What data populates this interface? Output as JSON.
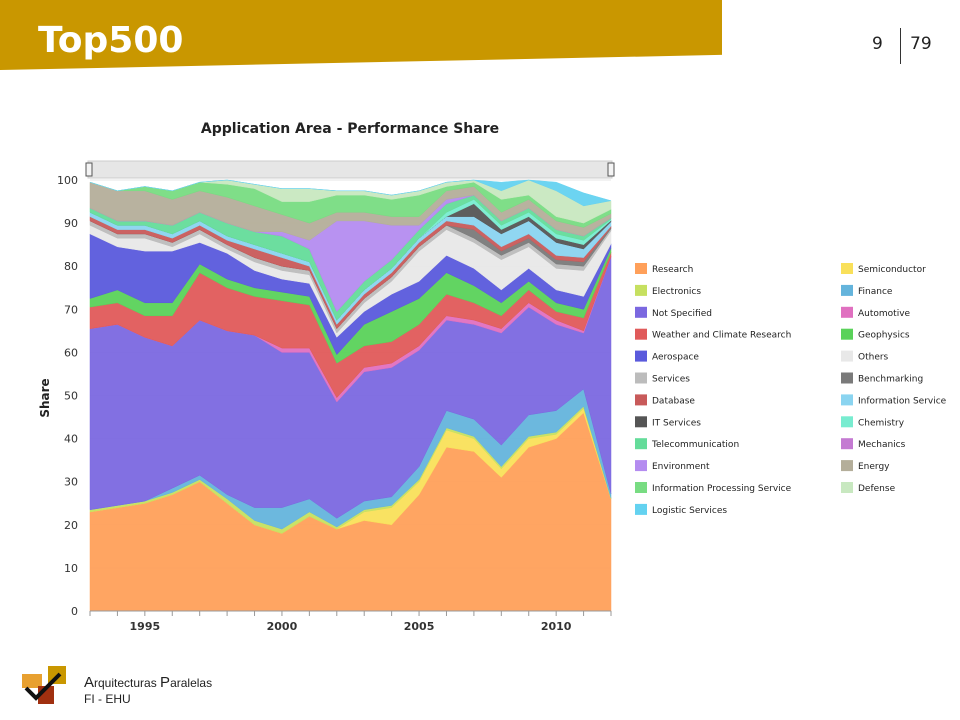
{
  "slide": {
    "title": "Top500",
    "page_current": "9",
    "page_total": "79"
  },
  "footer": {
    "line1_letter_a": "A",
    "line1_rest_a": "rquitecturas ",
    "line1_letter_p": "P",
    "line1_rest_p": "aralelas",
    "line2": "FI - EHU"
  },
  "chart_data": {
    "type": "area",
    "title": "Application Area - Performance Share",
    "xlabel": "",
    "ylabel": "Share",
    "ylim": [
      0,
      100
    ],
    "y_ticks": [
      "0",
      "10",
      "20",
      "30",
      "40",
      "50",
      "60",
      "70",
      "80",
      "90",
      "100"
    ],
    "x_ticks": [
      {
        "label": "1995",
        "value": 1995
      },
      {
        "label": "2000",
        "value": 2000
      },
      {
        "label": "2005",
        "value": 2005
      },
      {
        "label": "2010",
        "value": 2010
      }
    ],
    "x": [
      1993,
      1994,
      1995,
      1996,
      1997,
      1998,
      1999,
      2000,
      2001,
      2002,
      2003,
      2004,
      2005,
      2006,
      2007,
      2008,
      2009,
      2010,
      2011,
      2012
    ],
    "legend_position": "right",
    "series": [
      {
        "name": "Research",
        "color": "#ffa05a",
        "values": [
          23,
          24,
          25,
          27,
          30,
          25,
          20,
          18,
          22,
          19,
          21,
          20,
          27,
          38,
          37,
          31,
          38,
          40,
          46,
          26
        ]
      },
      {
        "name": "Semiconductor",
        "color": "#f9e05a",
        "values": [
          0,
          0,
          0,
          0,
          0,
          0,
          0,
          0,
          0,
          0,
          2,
          4,
          3,
          4,
          3,
          2,
          2,
          1,
          1,
          0
        ]
      },
      {
        "name": "Electronics",
        "color": "#c6e060",
        "values": [
          0.5,
          0.5,
          0.5,
          0.5,
          0.5,
          1,
          1,
          1,
          1,
          0.5,
          0.5,
          0.5,
          0.5,
          0.5,
          0.5,
          0.5,
          0.5,
          0.5,
          0.5,
          0.2
        ]
      },
      {
        "name": "Finance",
        "color": "#64b4dc",
        "values": [
          0,
          0,
          0,
          1,
          1,
          1,
          3,
          5,
          3,
          2,
          2,
          2,
          3,
          4,
          4,
          5,
          5,
          5,
          4,
          1
        ]
      },
      {
        "name": "Not Specified",
        "color": "#7b68e0",
        "values": [
          42,
          42,
          38,
          33,
          36,
          38,
          40,
          36,
          34,
          27,
          30,
          30,
          27,
          21,
          22,
          26,
          25,
          20,
          13,
          55
        ]
      },
      {
        "name": "Automotive",
        "color": "#e070c0",
        "values": [
          0,
          0,
          0,
          0,
          0,
          0,
          0,
          1,
          1,
          1,
          1,
          1,
          1,
          1,
          1,
          1,
          1,
          1,
          0.5,
          0
        ]
      },
      {
        "name": "Weather and Climate Research",
        "color": "#e05a5a",
        "values": [
          5,
          5,
          5,
          7,
          11,
          10,
          9,
          11,
          10,
          8,
          5,
          5,
          5,
          5,
          4,
          3,
          3,
          2,
          3,
          1
        ]
      },
      {
        "name": "Geophysics",
        "color": "#5ad25a",
        "values": [
          2,
          3,
          3,
          3,
          2,
          2,
          2,
          2,
          2,
          2,
          5,
          7,
          6,
          5,
          4,
          3,
          2,
          2,
          2,
          1
        ]
      },
      {
        "name": "Aerospace",
        "color": "#5a5adc",
        "values": [
          15,
          10,
          12,
          12,
          5,
          6,
          4,
          3,
          3,
          4,
          3,
          4,
          4,
          4,
          4,
          3,
          3,
          3,
          3,
          1
        ]
      },
      {
        "name": "Others",
        "color": "#e8e8e8",
        "values": [
          2,
          2,
          3,
          1,
          2,
          1,
          2,
          2,
          2,
          1,
          2,
          3,
          7,
          6,
          6,
          7,
          5,
          5,
          6,
          3
        ]
      },
      {
        "name": "Services",
        "color": "#bcbcbc",
        "values": [
          1,
          1,
          1,
          1,
          1,
          1,
          1,
          1,
          1,
          1,
          1,
          1,
          1,
          1,
          1,
          1,
          1,
          1,
          1,
          0.5
        ]
      },
      {
        "name": "Benchmarking",
        "color": "#7a7a7a",
        "values": [
          0,
          0,
          0,
          0,
          0,
          0,
          0,
          0,
          0,
          0,
          0,
          0,
          0,
          0,
          2,
          1,
          1,
          1,
          1,
          0.3
        ]
      },
      {
        "name": "Database",
        "color": "#c85a5a",
        "values": [
          1,
          1,
          1,
          1,
          1,
          1,
          2,
          2,
          1,
          1,
          1,
          1,
          1,
          1,
          1,
          1,
          1,
          1,
          1,
          0.3
        ]
      },
      {
        "name": "Information Service",
        "color": "#8ad4f0",
        "values": [
          1,
          1,
          1,
          1,
          1,
          1,
          1,
          1,
          1,
          1,
          1,
          1,
          1,
          1,
          2,
          3,
          3,
          3,
          2,
          1
        ]
      },
      {
        "name": "IT Services",
        "color": "#555555",
        "values": [
          0,
          0,
          0,
          0,
          0,
          0,
          0,
          0,
          0,
          0,
          0,
          0,
          0,
          0,
          3,
          1,
          1,
          1,
          1,
          0.3
        ]
      },
      {
        "name": "Chemistry",
        "color": "#78ecd0",
        "values": [
          0,
          0,
          0,
          0,
          0,
          0,
          0,
          0,
          0,
          0,
          0,
          0,
          0,
          1,
          1,
          1,
          1,
          1,
          1,
          0.3
        ]
      },
      {
        "name": "Telecommunication",
        "color": "#64dc9a",
        "values": [
          1,
          1,
          1,
          2,
          2,
          3,
          3,
          4,
          3,
          2,
          2,
          2,
          2,
          2,
          1,
          1,
          1,
          1,
          1,
          0.3
        ]
      },
      {
        "name": "Mechanics",
        "color": "#c47ad2",
        "values": [
          0,
          0,
          0,
          0,
          0,
          0,
          0,
          0,
          0,
          0,
          0,
          0,
          0,
          0,
          0,
          0,
          0,
          0,
          0,
          0
        ]
      },
      {
        "name": "Environment",
        "color": "#b48cf0",
        "values": [
          0,
          0,
          0,
          0,
          0,
          0,
          0,
          1,
          2,
          21,
          14,
          8,
          1,
          1,
          0,
          0,
          0,
          0,
          0,
          0
        ]
      },
      {
        "name": "Energy",
        "color": "#b4ae9a",
        "values": [
          6,
          7,
          7,
          6,
          5,
          6,
          6,
          4,
          4,
          2,
          2,
          2,
          2,
          2,
          2,
          2,
          2,
          2,
          2,
          1
        ]
      },
      {
        "name": "Information Processing Service",
        "color": "#78dc82",
        "values": [
          0,
          0,
          1,
          2,
          2,
          3,
          4,
          3,
          5,
          4,
          4,
          4,
          5,
          1,
          1,
          3,
          1,
          1,
          1,
          1
        ]
      },
      {
        "name": "Defense",
        "color": "#c8e8c0",
        "values": [
          0,
          0,
          0,
          0,
          0,
          1,
          1,
          3,
          3,
          1,
          1,
          1,
          1,
          1,
          1,
          2,
          4,
          6,
          4,
          2
        ]
      },
      {
        "name": "Logistic Services",
        "color": "#64d2f0",
        "values": [
          0,
          0,
          0,
          0,
          0,
          0,
          0,
          0,
          0,
          0,
          0,
          0,
          0,
          0,
          1,
          2,
          3,
          2,
          3,
          0
        ]
      }
    ],
    "legend_columns": [
      [
        "Research",
        "Electronics",
        "Not Specified",
        "Weather and Climate Research",
        "Aerospace",
        "Services",
        "Database",
        "IT Services",
        "Telecommunication",
        "Environment",
        "Information Processing Service",
        "Logistic Services"
      ],
      [
        "Semiconductor",
        "Finance",
        "Automotive",
        "Geophysics",
        "Others",
        "Benchmarking",
        "Information Service",
        "Chemistry",
        "Mechanics",
        "Energy",
        "Defense"
      ]
    ]
  }
}
